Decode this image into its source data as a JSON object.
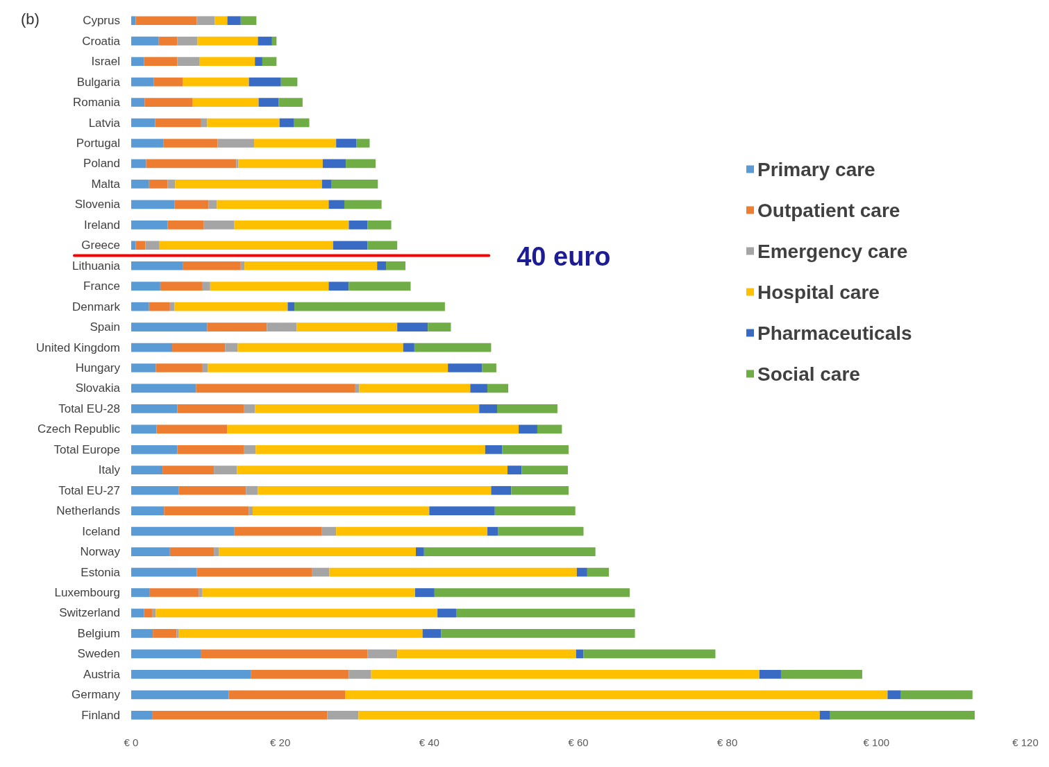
{
  "chart_data": {
    "type": "bar",
    "orientation": "horizontal",
    "stacked": true,
    "title": "(b)",
    "categories": [
      "Cyprus",
      "Croatia",
      "Israel",
      "Bulgaria",
      "Romania",
      "Latvia",
      "Portugal",
      "Poland",
      "Malta",
      "Slovenia",
      "Ireland",
      "Greece",
      "Lithuania",
      "France",
      "Denmark",
      "Spain",
      "United Kingdom",
      "Hungary",
      "Slovakia",
      "Total EU-28",
      "Czech Republic",
      "Total Europe",
      "Italy",
      "Total EU-27",
      "Netherlands",
      "Iceland",
      "Norway",
      "Estonia",
      "Luxembourg",
      "Switzerland",
      "Belgium",
      "Sweden",
      "Austria",
      "Germany",
      "Finland"
    ],
    "series": [
      {
        "name": "Primary care",
        "color": "#5b9bd5",
        "values": [
          0.6,
          3.7,
          1.7,
          3.0,
          1.8,
          3.2,
          4.3,
          2.0,
          2.4,
          5.8,
          4.9,
          0.6,
          6.9,
          3.9,
          2.4,
          10.2,
          5.5,
          3.3,
          8.7,
          6.2,
          3.4,
          6.2,
          4.2,
          6.4,
          4.4,
          13.8,
          5.2,
          8.8,
          2.5,
          1.7,
          2.9,
          9.4,
          16.1,
          13.1,
          2.8
        ]
      },
      {
        "name": "Outpatient care",
        "color": "#ed7d31",
        "values": [
          8.2,
          2.5,
          4.5,
          3.9,
          6.4,
          6.2,
          7.3,
          12.1,
          2.5,
          4.6,
          4.8,
          1.3,
          7.8,
          5.6,
          2.8,
          8.0,
          7.1,
          6.2,
          21.3,
          8.9,
          9.5,
          8.9,
          6.9,
          9.0,
          11.4,
          11.8,
          5.9,
          15.5,
          6.6,
          1.1,
          3.2,
          22.3,
          13.1,
          15.6,
          23.5
        ]
      },
      {
        "name": "Emergency care",
        "color": "#a5a5a5",
        "values": [
          2.4,
          2.7,
          3.0,
          0,
          0,
          0.8,
          4.9,
          0.3,
          1.0,
          1.1,
          4.1,
          1.9,
          0.5,
          1.1,
          0.6,
          4.0,
          1.7,
          0.8,
          0.6,
          1.5,
          0,
          1.6,
          3.1,
          1.6,
          0.5,
          1.9,
          0.7,
          2.3,
          0.4,
          0.5,
          0.3,
          4.0,
          3.0,
          0,
          4.2
        ]
      },
      {
        "name": "Hospital care",
        "color": "#ffc000",
        "values": [
          1.7,
          8.1,
          7.4,
          8.9,
          8.9,
          9.7,
          11.0,
          11.3,
          19.7,
          15.0,
          15.4,
          23.3,
          17.8,
          15.9,
          15.2,
          13.5,
          22.2,
          32.2,
          14.9,
          30.1,
          39.1,
          30.8,
          36.3,
          31.3,
          23.7,
          20.3,
          26.4,
          33.2,
          28.6,
          37.8,
          32.7,
          24.0,
          52.1,
          72.8,
          61.9
        ]
      },
      {
        "name": "Pharmaceuticals",
        "color": "#3a6bc4",
        "values": [
          1.8,
          1.9,
          1.0,
          4.3,
          2.7,
          1.9,
          2.7,
          3.1,
          1.3,
          2.1,
          2.5,
          4.6,
          1.2,
          2.7,
          0.9,
          4.1,
          1.5,
          4.6,
          2.3,
          2.4,
          2.5,
          2.3,
          1.9,
          2.7,
          8.8,
          1.4,
          1.1,
          1.4,
          2.6,
          2.5,
          2.5,
          1.0,
          2.9,
          1.8,
          1.4
        ]
      },
      {
        "name": "Social care",
        "color": "#70ad47",
        "values": [
          2.1,
          0.6,
          1.9,
          2.2,
          3.2,
          2.1,
          1.8,
          4.0,
          6.2,
          5.0,
          3.2,
          4.0,
          2.6,
          8.3,
          20.2,
          3.1,
          10.3,
          1.9,
          2.8,
          8.1,
          3.3,
          8.9,
          6.2,
          7.7,
          10.8,
          11.5,
          23.0,
          2.9,
          26.2,
          24.0,
          26.0,
          17.7,
          10.9,
          9.6,
          19.4
        ]
      }
    ],
    "xlim": [
      0,
      120
    ],
    "xticks": [
      {
        "value": 0,
        "label": "€ 0"
      },
      {
        "value": 20,
        "label": "€ 20"
      },
      {
        "value": 40,
        "label": "€ 40"
      },
      {
        "value": 60,
        "label": "€ 60"
      },
      {
        "value": 80,
        "label": "€ 80"
      },
      {
        "value": 100,
        "label": "€ 100"
      },
      {
        "value": 120,
        "label": "€ 120"
      }
    ],
    "legend": "top right",
    "ref_lines": [
      {
        "axis": "y",
        "value": "Greece",
        "label": "40 euro",
        "color": "#ff0000"
      }
    ]
  }
}
